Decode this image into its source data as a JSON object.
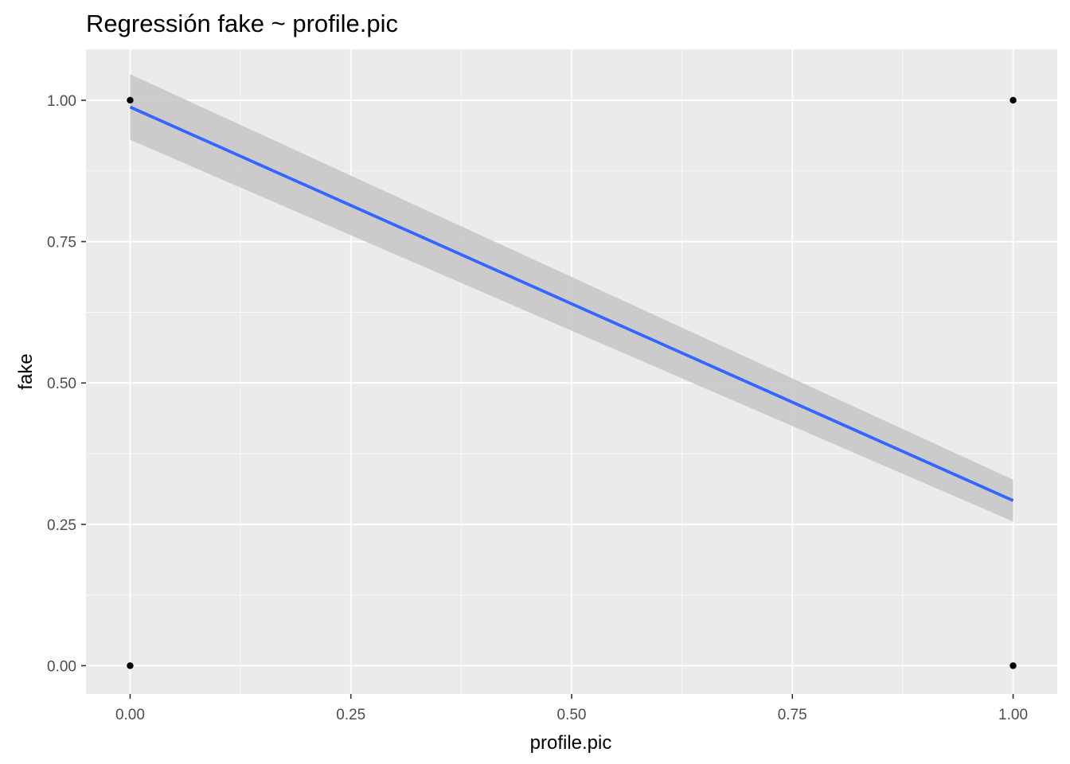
{
  "chart_data": {
    "type": "scatter",
    "title": "Regressión fake ~ profile.pic",
    "xlabel": "profile.pic",
    "ylabel": "fake",
    "xlim": [
      -0.05,
      1.05
    ],
    "ylim": [
      -0.05,
      1.09
    ],
    "x_ticks": [
      0.0,
      0.25,
      0.5,
      0.75,
      1.0
    ],
    "x_tick_labels": [
      "0.00",
      "0.25",
      "0.50",
      "0.75",
      "1.00"
    ],
    "y_ticks": [
      0.0,
      0.25,
      0.5,
      0.75,
      1.0
    ],
    "y_tick_labels": [
      "0.00",
      "0.25",
      "0.50",
      "0.75",
      "1.00"
    ],
    "points": [
      {
        "x": 0,
        "y": 1
      },
      {
        "x": 0,
        "y": 0
      },
      {
        "x": 1,
        "y": 1
      },
      {
        "x": 1,
        "y": 0
      }
    ],
    "fit_line": {
      "method": "lm",
      "x": [
        0,
        1
      ],
      "y": [
        0.988,
        0.292
      ],
      "ci_lower": [
        0.93,
        0.255
      ],
      "ci_upper": [
        1.046,
        0.329
      ]
    },
    "grid": true,
    "legend": "none"
  },
  "colors": {
    "panel_background": "#ebebeb",
    "grid_major": "#ffffff",
    "fit_line": "#3366ff",
    "confidence_band": "#c8c8c8",
    "points": "#000000"
  }
}
